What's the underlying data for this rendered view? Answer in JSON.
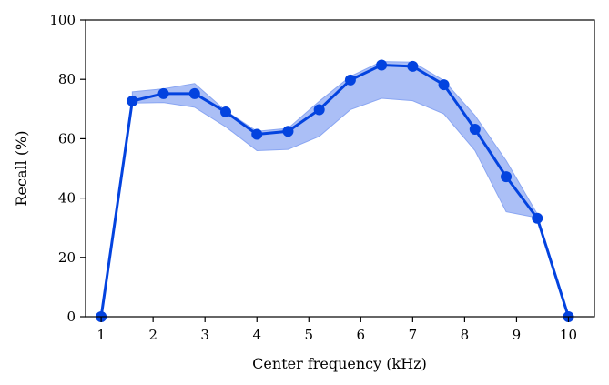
{
  "chart_data": {
    "type": "line",
    "title": "",
    "xlabel": "Center frequency (kHz)",
    "ylabel": "Recall (%)",
    "xlim": [
      0.7,
      10.5
    ],
    "ylim": [
      0,
      100
    ],
    "xticks": [
      1,
      2,
      3,
      4,
      5,
      6,
      7,
      8,
      9,
      10
    ],
    "yticks": [
      0,
      20,
      40,
      60,
      80,
      100
    ],
    "grid": false,
    "legend": "none",
    "line_color": "#0343df",
    "band_color": "#8aa6f2",
    "series": [
      {
        "x": [
          1.0,
          1.6,
          2.2,
          2.8,
          3.4,
          4.0,
          4.6,
          5.2,
          5.8,
          6.4,
          7.0,
          7.6,
          8.2,
          8.8,
          9.4,
          10.0
        ],
        "y": [
          0,
          72.7,
          75.2,
          75.2,
          69.0,
          61.5,
          62.5,
          69.8,
          79.8,
          84.8,
          84.4,
          78.2,
          63.2,
          47.2,
          33.2,
          0
        ]
      }
    ],
    "band": {
      "x": [
        1.6,
        2.2,
        2.8,
        3.4,
        4.0,
        4.6,
        5.2,
        5.8,
        6.4,
        7.0,
        7.6,
        8.2,
        8.8,
        9.4
      ],
      "upper": [
        75.8,
        76.8,
        78.6,
        69.4,
        62.5,
        63.5,
        72.6,
        81.0,
        86.0,
        85.8,
        79.6,
        67.8,
        52.6,
        34.6
      ],
      "lower": [
        72.0,
        72.2,
        70.6,
        64.0,
        56.0,
        56.4,
        60.8,
        69.8,
        73.6,
        72.8,
        68.4,
        56.0,
        35.4,
        33.4
      ]
    }
  }
}
